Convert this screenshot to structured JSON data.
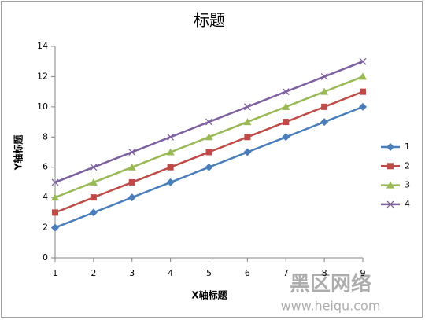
{
  "chart_data": {
    "type": "line",
    "title": "标题",
    "x_label": "X轴标题",
    "y_label": "Y轴标题",
    "categories": [
      "1",
      "2",
      "3",
      "4",
      "5",
      "6",
      "7",
      "8",
      "9"
    ],
    "series": [
      {
        "name": "1",
        "color": "#4a7ebb",
        "marker": "diamond",
        "values": [
          2,
          3,
          4,
          5,
          6,
          7,
          8,
          9,
          10
        ]
      },
      {
        "name": "2",
        "color": "#be4b48",
        "marker": "square",
        "values": [
          3,
          4,
          5,
          6,
          7,
          8,
          9,
          10,
          11
        ]
      },
      {
        "name": "3",
        "color": "#98b954",
        "marker": "triangle",
        "values": [
          4,
          5,
          6,
          7,
          8,
          9,
          10,
          11,
          12
        ]
      },
      {
        "name": "4",
        "color": "#7d60a0",
        "marker": "x",
        "values": [
          5,
          6,
          7,
          8,
          9,
          10,
          11,
          12,
          13
        ]
      }
    ],
    "ylim": [
      0,
      14
    ],
    "yticks": [
      0,
      2,
      4,
      6,
      8,
      10,
      12,
      14
    ],
    "grid": false,
    "legend": "right",
    "watermark": {
      "title": "黑区网络",
      "url": "www.heiqu.com"
    }
  }
}
